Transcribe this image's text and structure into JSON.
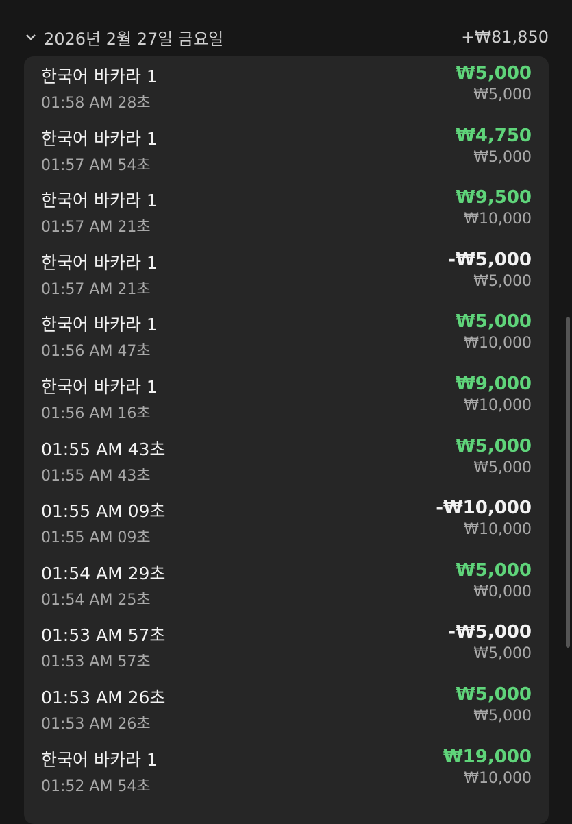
{
  "header": {
    "date": "2026년 2월 27일 금요일",
    "total": "+₩81,850",
    "icon": "chevron-down-icon"
  },
  "colors": {
    "positive": "#5fd47a",
    "background": "#171717",
    "card": "#262626"
  },
  "rows": [
    {
      "title": "한국어 바카라 1",
      "time": "01:58 AM 28초",
      "amount": "₩5,000",
      "bet": "₩5,000",
      "positive": true
    },
    {
      "title": "한국어 바카라 1",
      "time": "01:57 AM 54초",
      "amount": "₩4,750",
      "bet": "₩5,000",
      "positive": true
    },
    {
      "title": "한국어 바카라 1",
      "time": "01:57 AM 21초",
      "amount": "₩9,500",
      "bet": "₩10,000",
      "positive": true
    },
    {
      "title": "한국어 바카라 1",
      "time": "01:57 AM 21초",
      "amount": "-₩5,000",
      "bet": "₩5,000",
      "positive": false
    },
    {
      "title": "한국어 바카라 1",
      "time": "01:56 AM 47초",
      "amount": "₩5,000",
      "bet": "₩10,000",
      "positive": true
    },
    {
      "title": "한국어 바카라 1",
      "time": "01:56 AM 16초",
      "amount": "₩9,000",
      "bet": "₩10,000",
      "positive": true
    },
    {
      "title": "01:55 AM 43초",
      "time": "01:55 AM 43초",
      "amount": "₩5,000",
      "bet": "₩5,000",
      "positive": true
    },
    {
      "title": "01:55 AM 09초",
      "time": "01:55 AM 09초",
      "amount": "-₩10,000",
      "bet": "₩10,000",
      "positive": false
    },
    {
      "title": "01:54 AM 29초",
      "time": "01:54 AM 25초",
      "amount": "₩5,000",
      "bet": "₩0,000",
      "positive": true
    },
    {
      "title": "01:53 AM 57초",
      "time": "01:53 AM 57초",
      "amount": "-₩5,000",
      "bet": "₩5,000",
      "positive": false
    },
    {
      "title": "01:53 AM 26초",
      "time": "01:53 AM 26초",
      "amount": "₩5,000",
      "bet": "₩5,000",
      "positive": true
    },
    {
      "title": "한국어 바카라 1",
      "time": "01:52 AM 54초",
      "amount": "₩19,000",
      "bet": "₩10,000",
      "positive": true
    }
  ]
}
